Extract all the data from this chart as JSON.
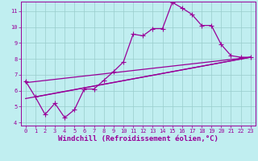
{
  "title": "",
  "xlabel": "Windchill (Refroidissement éolien,°C)",
  "ylabel": "",
  "bg_color": "#c0eef0",
  "line_color": "#990099",
  "grid_color": "#99cccc",
  "xlim": [
    -0.5,
    23.5
  ],
  "ylim": [
    3.8,
    11.6
  ],
  "xticks": [
    0,
    1,
    2,
    3,
    4,
    5,
    6,
    7,
    8,
    9,
    10,
    11,
    12,
    13,
    14,
    15,
    16,
    17,
    18,
    19,
    20,
    21,
    22,
    23
  ],
  "yticks": [
    4,
    5,
    6,
    7,
    8,
    9,
    10,
    11
  ],
  "main_x": [
    0,
    1,
    2,
    3,
    4,
    5,
    6,
    7,
    8,
    9,
    10,
    11,
    12,
    13,
    14,
    15,
    16,
    17,
    18,
    19,
    20,
    21,
    22,
    23
  ],
  "main_y": [
    6.6,
    5.6,
    4.5,
    5.2,
    4.3,
    4.8,
    6.1,
    6.1,
    6.65,
    7.2,
    7.8,
    9.55,
    9.45,
    9.9,
    9.9,
    11.55,
    11.2,
    10.8,
    10.1,
    10.1,
    8.9,
    8.2,
    8.1,
    8.1
  ],
  "trend1_x": [
    0,
    23
  ],
  "trend1_y": [
    6.5,
    8.1
  ],
  "trend2_x": [
    1,
    23
  ],
  "trend2_y": [
    5.6,
    8.1
  ],
  "trend3_x": [
    0,
    23
  ],
  "trend3_y": [
    5.5,
    8.1
  ],
  "marker": "+",
  "markersize": 4,
  "linewidth": 0.9,
  "tick_fontsize": 5,
  "xlabel_fontsize": 6.5,
  "font_family": "monospace"
}
